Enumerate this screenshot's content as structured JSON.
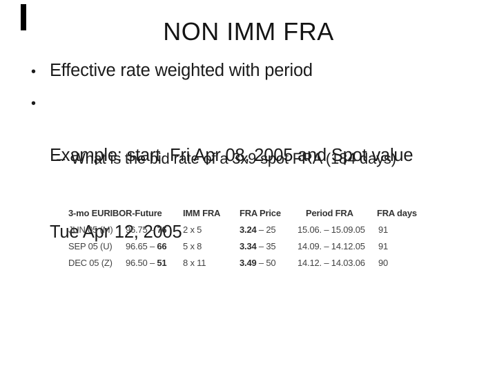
{
  "title": "NON IMM FRA",
  "bullet_glyph": "•",
  "bullets": [
    {
      "text": "Effective rate weighted with period"
    },
    {
      "lines": [
        "Example: start  Fri Apr 08, 2005 and Spot value",
        "Tue Apr 12, 2005"
      ]
    }
  ],
  "sub_bullet": {
    "dash": "–",
    "text": "What is the bid rate of a 3x9 spot FRA (184 days)"
  },
  "table": {
    "headers": {
      "futures": "3-mo EURIBOR-Future",
      "imm_fra": "IMM FRA",
      "fra_price": "FRA Price",
      "period_fra": "Period FRA",
      "fra_days": "FRA days"
    },
    "rows": [
      {
        "month": "JUN 05 (M)",
        "quote_pre": "96.75 – ",
        "quote_bold": "76",
        "imm": "2 x 5",
        "price_bold": "3.24",
        "price_post": " – 25",
        "period": "15.06. – 15.09.05",
        "days": "91"
      },
      {
        "month": "SEP 05 (U)",
        "quote_pre": "96.65 – ",
        "quote_bold": "66",
        "imm": "5 x 8",
        "price_bold": "3.34",
        "price_post": " – 35",
        "period": "14.09. – 14.12.05",
        "days": "91"
      },
      {
        "month": "DEC 05 (Z)",
        "quote_pre": "96.50 – ",
        "quote_bold": "51",
        "imm": "8 x 11",
        "price_bold": "3.49",
        "price_post": " – 50",
        "period": "14.12. – 14.03.06",
        "days": "90"
      }
    ]
  },
  "colors": {
    "background": "#ffffff",
    "body_text": "#1b1b1b",
    "table_text": "#424242",
    "cursor_bar": "#000000"
  }
}
